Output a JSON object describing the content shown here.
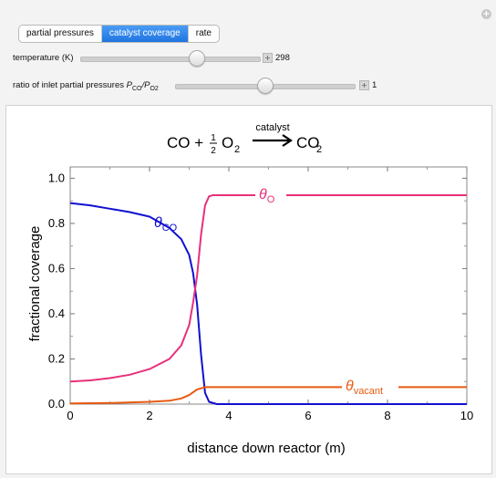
{
  "tabs": [
    {
      "label": "partial pressures",
      "active": false
    },
    {
      "label": "catalyst coverage",
      "active": true
    },
    {
      "label": "rate",
      "active": false
    }
  ],
  "controls": {
    "temperature": {
      "label": "temperature (K)",
      "value": "298",
      "fraction": 0.65
    },
    "ratio": {
      "label_prefix": "ratio of inlet partial pressures ",
      "label_formula": "P_CO/P_O2",
      "value": "1",
      "fraction": 0.5
    }
  },
  "equation": {
    "left_CO": "CO +",
    "half_num": "1",
    "half_den": "2",
    "O2": "O",
    "O2_sub": "2",
    "catalyst": "catalyst",
    "right_CO": "CO",
    "right_sub": "2"
  },
  "chart_data": {
    "type": "line",
    "xlabel": "distance down reactor (m)",
    "ylabel": "fractional coverage",
    "xlim": [
      0,
      10
    ],
    "ylim": [
      0,
      1.05
    ],
    "x_ticks": [
      "0",
      "2",
      "4",
      "6",
      "8",
      "10"
    ],
    "y_ticks": [
      "0.0",
      "0.2",
      "0.4",
      "0.6",
      "0.8",
      "1.0"
    ],
    "series": [
      {
        "name": "θCO",
        "symbol": "θ",
        "sub": "CO",
        "color": "#1010d0",
        "x": [
          0,
          0.5,
          1,
          1.5,
          2,
          2.5,
          2.8,
          3.0,
          3.1,
          3.2,
          3.3,
          3.4,
          3.5,
          3.7,
          4,
          5,
          6,
          7,
          8,
          9,
          10
        ],
        "y": [
          0.89,
          0.88,
          0.865,
          0.85,
          0.83,
          0.78,
          0.73,
          0.66,
          0.58,
          0.44,
          0.22,
          0.05,
          0.01,
          0.0,
          0.0,
          0.0,
          0.0,
          0.0,
          0.0,
          0.0,
          0.0
        ]
      },
      {
        "name": "θO",
        "symbol": "θ",
        "sub": "O",
        "color": "#e8307a",
        "x": [
          0,
          0.5,
          1,
          1.5,
          2,
          2.5,
          2.8,
          3.0,
          3.1,
          3.2,
          3.3,
          3.4,
          3.5,
          3.6,
          4,
          5,
          6,
          7,
          8,
          9,
          10
        ],
        "y": [
          0.1,
          0.105,
          0.115,
          0.13,
          0.155,
          0.2,
          0.26,
          0.35,
          0.45,
          0.57,
          0.75,
          0.88,
          0.92,
          0.925,
          0.925,
          0.925,
          0.925,
          0.925,
          0.925,
          0.925,
          0.925
        ]
      },
      {
        "name": "θvacant",
        "symbol": "θ",
        "sub": "vacant",
        "color": "#e85a10",
        "x": [
          0,
          1,
          2,
          2.5,
          2.8,
          3.0,
          3.2,
          3.4,
          3.6,
          4,
          5,
          6,
          7,
          8,
          9,
          10
        ],
        "y": [
          0.003,
          0.005,
          0.01,
          0.015,
          0.025,
          0.04,
          0.065,
          0.075,
          0.075,
          0.075,
          0.075,
          0.075,
          0.075,
          0.075,
          0.075,
          0.075
        ]
      }
    ]
  }
}
